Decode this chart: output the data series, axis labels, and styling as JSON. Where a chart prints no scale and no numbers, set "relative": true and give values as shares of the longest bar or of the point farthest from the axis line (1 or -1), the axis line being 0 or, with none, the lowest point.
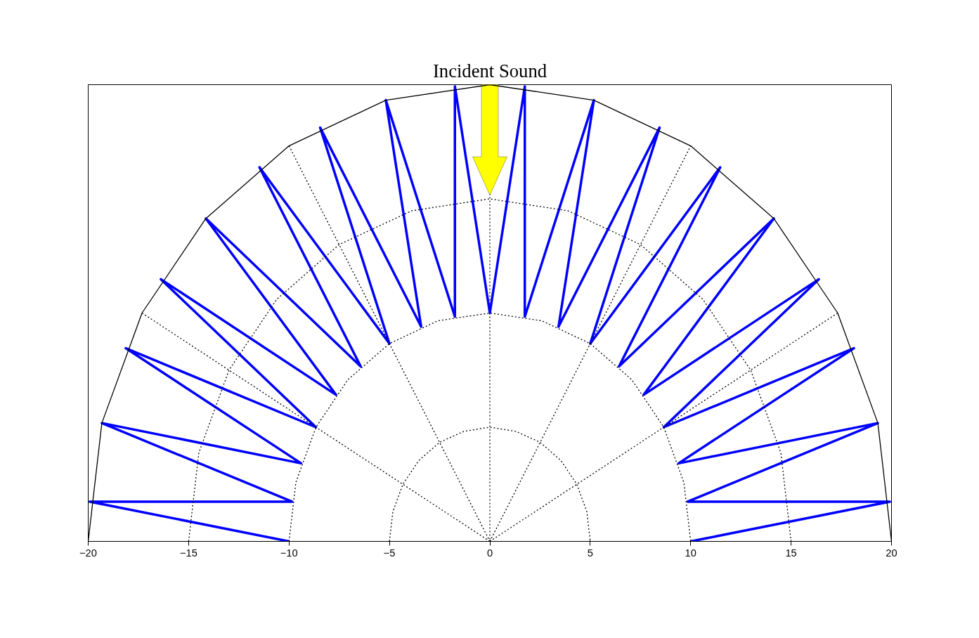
{
  "chart_data": {
    "type": "line",
    "relative": true,
    "xlim": [
      -20,
      20
    ],
    "xticks": [
      -20,
      -15,
      -10,
      -5,
      0,
      5,
      10,
      15,
      20
    ],
    "marker": "none",
    "annotations": [
      "Incident Sound"
    ],
    "ref_lines": [
      {
        "axis": "x",
        "value": 0,
        "color": "#000000",
        "line_style": "dotted"
      }
    ],
    "series": [
      {
        "color": "#0000ff",
        "line_style": "solid",
        "x": [
          -10,
          -19.92,
          -9.85,
          -19.32,
          -9.4,
          -18.13,
          -8.66,
          -16.38,
          -7.66,
          -14.14,
          -6.43,
          -11.47,
          -5,
          -8.45,
          -3.42,
          -5.18,
          -1.74,
          -1.74,
          0,
          1.74,
          1.74,
          5.18,
          3.42,
          8.45,
          5,
          11.47,
          6.43,
          14.14,
          7.66,
          16.38,
          8.66,
          18.13,
          9.4,
          19.32,
          9.85,
          19.92,
          10
        ],
        "values": [
          0,
          0.087,
          0.087,
          0.259,
          0.171,
          0.423,
          0.25,
          0.574,
          0.321,
          0.707,
          0.383,
          0.819,
          0.433,
          0.906,
          0.47,
          0.966,
          0.492,
          0.996,
          0.5,
          0.996,
          0.492,
          0.966,
          0.47,
          0.906,
          0.433,
          0.819,
          0.383,
          0.707,
          0.321,
          0.574,
          0.25,
          0.423,
          0.171,
          0.259,
          0.087,
          0.087,
          0
        ]
      },
      {
        "color": "#000000",
        "line_style": "solid",
        "x": [
          -20,
          -19.32,
          -17.32,
          -14.14,
          -10,
          -5.18,
          0,
          5.18,
          10,
          14.14,
          17.32,
          19.32,
          20
        ],
        "values": [
          0,
          0.259,
          0.5,
          0.707,
          0.866,
          0.966,
          1,
          0.966,
          0.866,
          0.707,
          0.5,
          0.259,
          0
        ]
      },
      {
        "color": "#000000",
        "line_style": "dotted",
        "x": [
          -15,
          -14.49,
          -12.99,
          -10.61,
          -7.5,
          -3.88,
          0,
          3.88,
          7.5,
          10.61,
          12.99,
          14.49,
          15
        ],
        "values": [
          0,
          0.194,
          0.375,
          0.53,
          0.65,
          0.724,
          0.75,
          0.724,
          0.65,
          0.53,
          0.375,
          0.194,
          0
        ]
      },
      {
        "color": "#000000",
        "line_style": "dotted",
        "x": [
          -10,
          -9.66,
          -8.66,
          -7.07,
          -5,
          -2.59,
          0,
          2.59,
          5,
          7.07,
          8.66,
          9.66,
          10
        ],
        "values": [
          0,
          0.129,
          0.25,
          0.354,
          0.433,
          0.483,
          0.5,
          0.483,
          0.433,
          0.354,
          0.25,
          0.129,
          0
        ]
      },
      {
        "color": "#000000",
        "line_style": "dotted",
        "x": [
          -5,
          -4.83,
          -4.33,
          -3.54,
          -2.5,
          -1.29,
          0,
          1.29,
          2.5,
          3.54,
          4.33,
          4.83,
          5
        ],
        "values": [
          0,
          0.065,
          0.125,
          0.177,
          0.217,
          0.241,
          0.25,
          0.241,
          0.217,
          0.177,
          0.125,
          0.065,
          0
        ]
      },
      {
        "color": "#000000",
        "line_style": "dotted",
        "x": [
          -17.32,
          0
        ],
        "values": [
          0.5,
          0
        ]
      },
      {
        "color": "#000000",
        "line_style": "dotted",
        "x": [
          -10,
          0
        ],
        "values": [
          0.866,
          0
        ]
      },
      {
        "color": "#000000",
        "line_style": "dotted",
        "x": [
          0,
          10
        ],
        "values": [
          0,
          0.866
        ]
      },
      {
        "color": "#000000",
        "line_style": "dotted",
        "x": [
          0,
          17.32
        ],
        "values": [
          0,
          0.5
        ]
      }
    ]
  }
}
